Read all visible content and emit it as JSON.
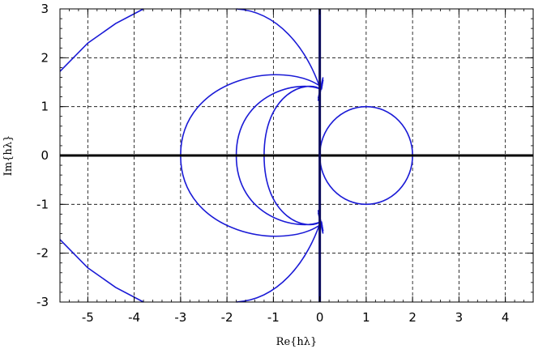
{
  "chart_data": {
    "type": "line",
    "xlabel": "Re{hλ}",
    "ylabel": "Im{hλ}",
    "xlim": [
      -5.6,
      4.6
    ],
    "ylim": [
      -3,
      3
    ],
    "x_ticks": [
      "-5",
      "-4",
      "-3",
      "-2",
      "-1",
      "0",
      "1",
      "2",
      "3",
      "4"
    ],
    "y_ticks": [
      "-3",
      "-2",
      "-1",
      "0",
      "1",
      "2",
      "3"
    ],
    "grid": true,
    "grid_style": "dashed",
    "colors": {
      "curve": "#1a1ad6",
      "axis": "#000000",
      "imag_axis": "#0b0b5c",
      "grid": "#000000"
    },
    "curves": [
      {
        "shape": "circle",
        "center": [
          1,
          0
        ],
        "radius": 1
      },
      {
        "shape": "left-lobe",
        "left": -1.2,
        "top": 1.5,
        "bottom": -1.5,
        "cusps": [
          [
            0,
            1.35
          ],
          [
            0,
            -1.35
          ]
        ]
      },
      {
        "shape": "left-lobe",
        "left": -1.8,
        "top": 1.5,
        "bottom": -1.5,
        "cusps": [
          [
            0,
            1.35
          ],
          [
            0,
            -1.35
          ]
        ]
      },
      {
        "shape": "left-lobe",
        "left": -3.0,
        "top": 1.9,
        "bottom": -1.9,
        "cusps": [
          [
            0,
            1.4
          ],
          [
            0,
            -1.4
          ]
        ]
      },
      {
        "shape": "outer-arc",
        "points": [
          [
            -5.6,
            1.72
          ],
          [
            -5.0,
            2.3
          ],
          [
            -4.4,
            2.7
          ],
          [
            -3.8,
            3.0
          ]
        ],
        "ends_at_top": [
          0,
          1.4
        ]
      },
      {
        "shape": "outer-arc",
        "points": [
          [
            -5.6,
            -1.72
          ],
          [
            -5.0,
            -2.3
          ],
          [
            -4.4,
            -2.7
          ],
          [
            -3.8,
            -3.0
          ]
        ],
        "ends_at_bottom": [
          0,
          -1.4
        ]
      }
    ]
  }
}
